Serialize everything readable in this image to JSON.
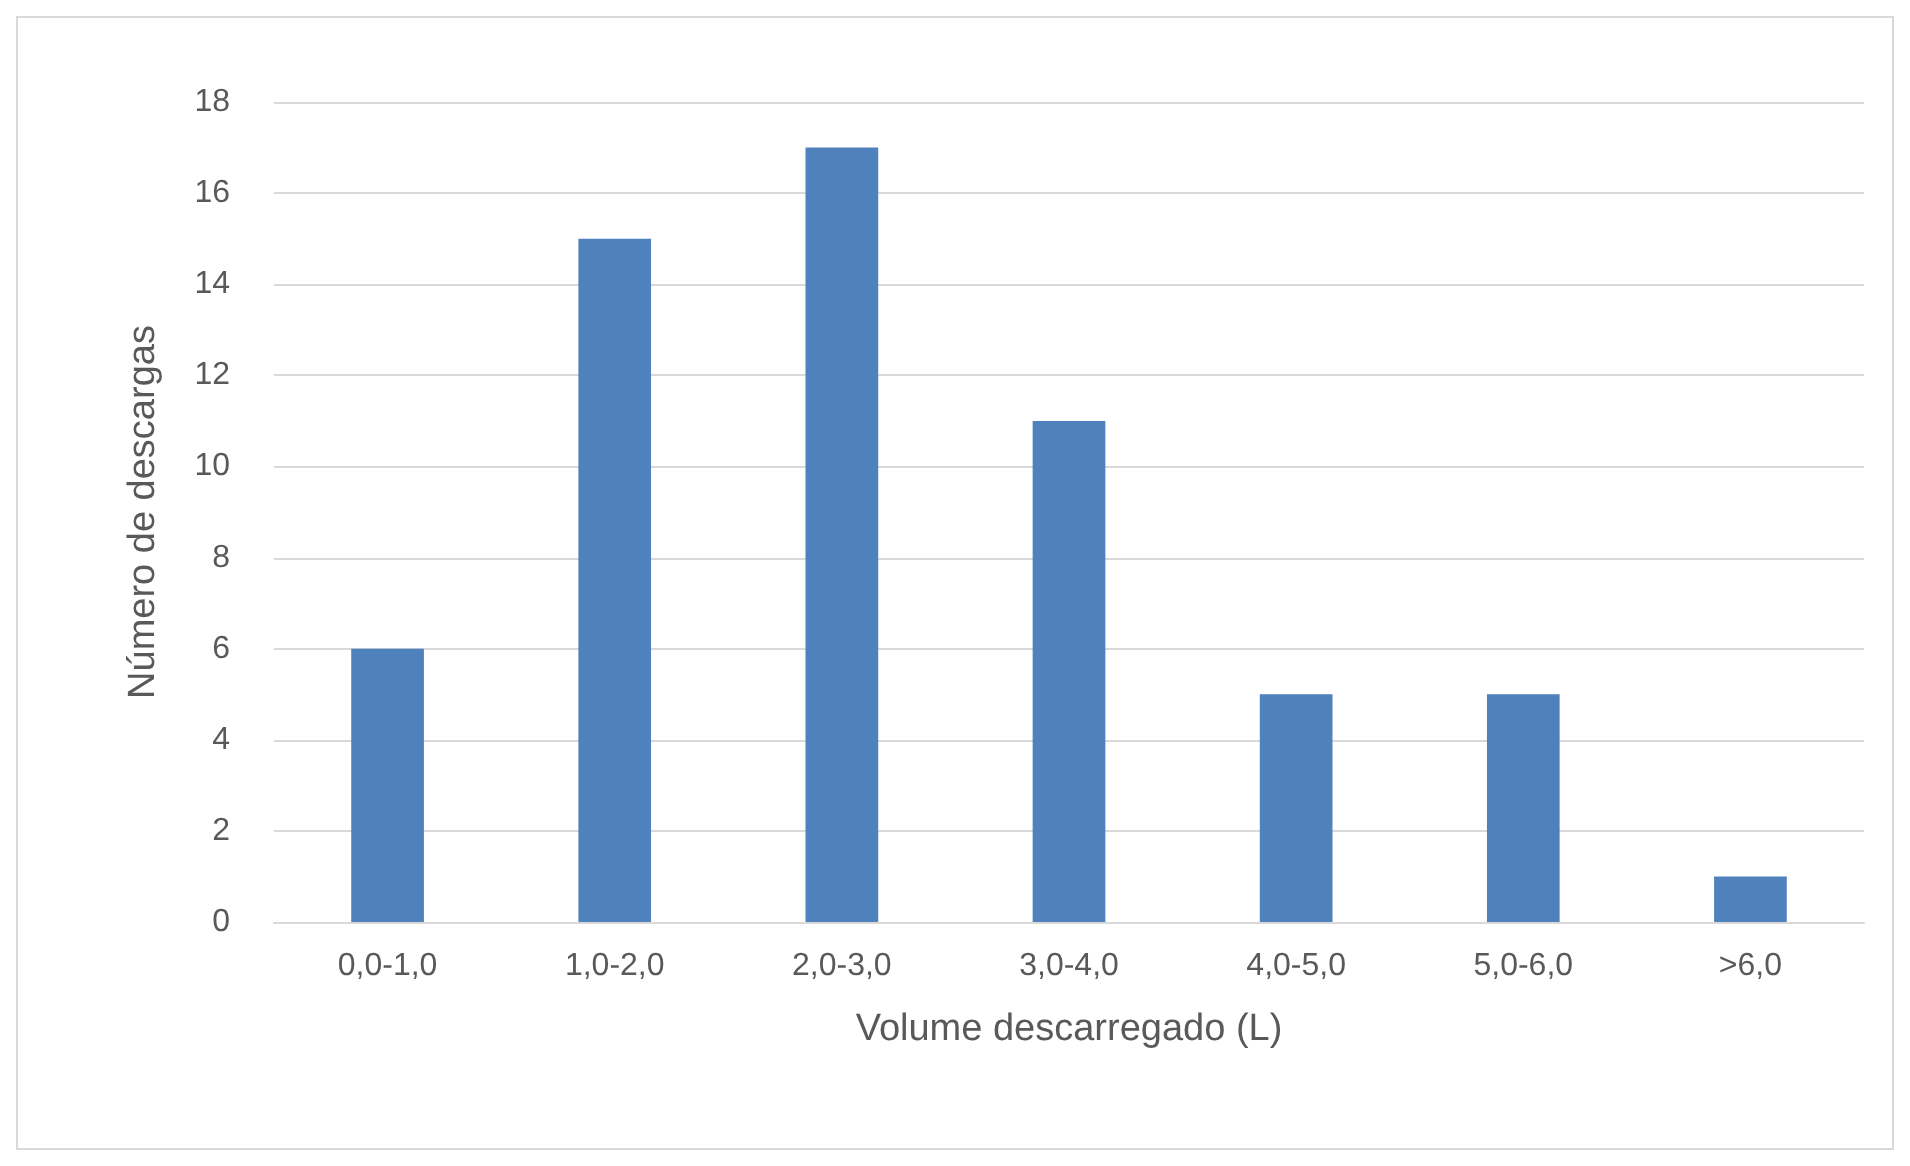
{
  "chart_data": {
    "type": "bar",
    "xlabel": "Volume descarregado (L)",
    "ylabel": "Número de descargas",
    "categories": [
      "0,0-1,0",
      "1,0-2,0",
      "2,0-3,0",
      "3,0-4,0",
      "4,0-5,0",
      "5,0-6,0",
      ">6,0"
    ],
    "values": [
      6,
      15,
      17,
      11,
      5,
      5,
      1
    ],
    "color": "#4f81bd",
    "ylim": [
      0,
      18
    ],
    "yticks": [
      0,
      2,
      4,
      6,
      8,
      10,
      12,
      14,
      16,
      18
    ],
    "grid": "y"
  }
}
